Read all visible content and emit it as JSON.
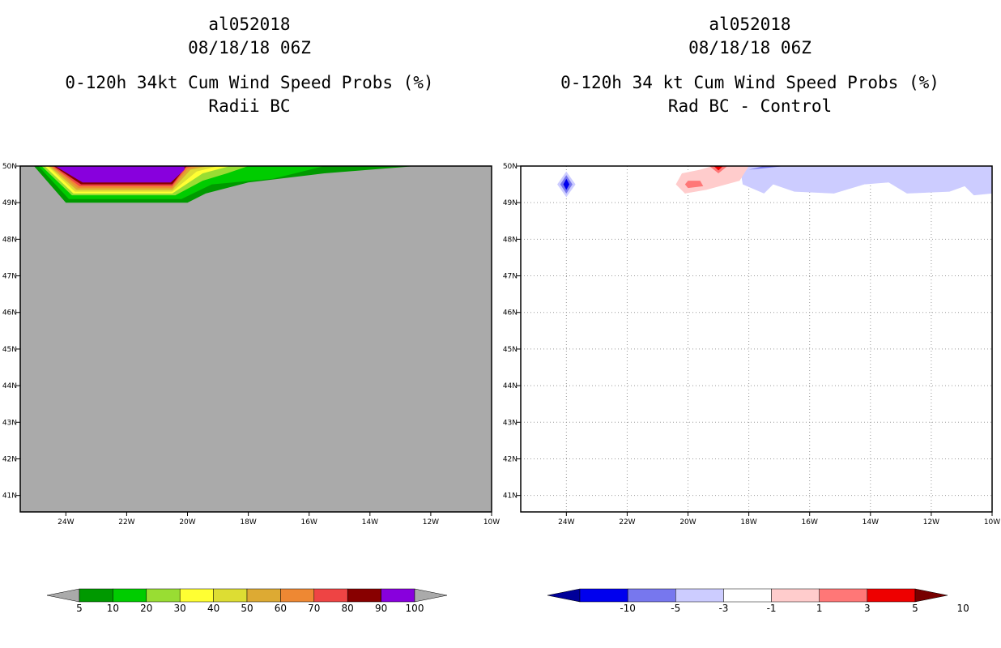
{
  "panels": [
    {
      "storm_id": "al052018",
      "datetime": "08/18/18 06Z",
      "product": "0-120h 34kt Cum Wind Speed Probs (%)",
      "subtitle": "Radii BC"
    },
    {
      "storm_id": "al052018",
      "datetime": "08/18/18 06Z",
      "product": "0-120h 34 kt Cum Wind Speed Probs (%)",
      "subtitle": "Rad BC - Control"
    }
  ],
  "chart_data": [
    {
      "type": "heatmap",
      "title": "0-120h 34kt Cum Wind Speed Probs (%)",
      "subtitle": "Radii BC",
      "xlim": [
        -25.5,
        -10
      ],
      "ylim": [
        40.55,
        50
      ],
      "x_ticks": [
        -24,
        -22,
        -20,
        -18,
        -16,
        -14,
        -12,
        -10
      ],
      "x_tick_labels": [
        "24W",
        "22W",
        "20W",
        "18W",
        "16W",
        "14W",
        "12W",
        "10W"
      ],
      "y_ticks": [
        41,
        42,
        43,
        44,
        45,
        46,
        47,
        48,
        49,
        50
      ],
      "y_tick_labels": [
        "41N",
        "42N",
        "43N",
        "44N",
        "45N",
        "46N",
        "47N",
        "48N",
        "49N",
        "50N"
      ],
      "grid": false,
      "background_color": "#aaaaaa",
      "contour_levels": [
        5,
        10,
        20,
        30,
        40,
        50,
        60,
        70,
        80,
        90,
        100
      ],
      "colorbar_colors": [
        "#009900",
        "#00cc00",
        "#99dd33",
        "#ffff33",
        "#dddd33",
        "#ddaa33",
        "#ee8833",
        "#ee4444",
        "#880000",
        "#8800dd"
      ],
      "colorbar_labels": [
        "5",
        "10",
        "20",
        "30",
        "40",
        "50",
        "60",
        "70",
        "80",
        "90",
        "100"
      ],
      "contours": [
        {
          "level": 5,
          "color": "#009900",
          "points": [
            [
              -25.05,
              50
            ],
            [
              -24.0,
              49.0
            ],
            [
              -20.0,
              49.0
            ],
            [
              -19.4,
              49.25
            ],
            [
              -18.0,
              49.55
            ],
            [
              -15.5,
              49.8
            ],
            [
              -12.5,
              50
            ]
          ]
        },
        {
          "level": 10,
          "color": "#00cc00",
          "points": [
            [
              -24.9,
              50
            ],
            [
              -23.9,
              49.1
            ],
            [
              -20.2,
              49.1
            ],
            [
              -19.2,
              49.5
            ],
            [
              -17.2,
              49.65
            ],
            [
              -15.5,
              50
            ]
          ]
        },
        {
          "level": 20,
          "color": "#99dd33",
          "points": [
            [
              -24.8,
              50
            ],
            [
              -23.8,
              49.2
            ],
            [
              -20.4,
              49.2
            ],
            [
              -19.5,
              49.6
            ],
            [
              -18.7,
              49.8
            ],
            [
              -18.0,
              50
            ]
          ]
        },
        {
          "level": 30,
          "color": "#ffff33",
          "points": [
            [
              -24.7,
              50
            ],
            [
              -23.75,
              49.25
            ],
            [
              -20.5,
              49.25
            ],
            [
              -19.5,
              49.8
            ],
            [
              -18.6,
              50
            ]
          ]
        },
        {
          "level": 40,
          "color": "#dddd33",
          "points": [
            [
              -24.6,
              50
            ],
            [
              -23.7,
              49.3
            ],
            [
              -20.5,
              49.3
            ],
            [
              -19.7,
              49.85
            ],
            [
              -19.0,
              50
            ]
          ]
        },
        {
          "level": 50,
          "color": "#ddaa33",
          "points": [
            [
              -24.55,
              50
            ],
            [
              -23.65,
              49.35
            ],
            [
              -20.5,
              49.35
            ],
            [
              -19.9,
              49.9
            ],
            [
              -19.3,
              50
            ]
          ]
        },
        {
          "level": 60,
          "color": "#ee8833",
          "points": [
            [
              -24.5,
              50
            ],
            [
              -23.6,
              49.4
            ],
            [
              -20.5,
              49.4
            ],
            [
              -20.0,
              49.92
            ],
            [
              -19.6,
              50
            ]
          ]
        },
        {
          "level": 70,
          "color": "#ee4444",
          "points": [
            [
              -24.45,
              50
            ],
            [
              -23.55,
              49.45
            ],
            [
              -20.5,
              49.45
            ],
            [
              -20.05,
              49.95
            ],
            [
              -19.8,
              50
            ]
          ]
        },
        {
          "level": 80,
          "color": "#880000",
          "points": [
            [
              -24.4,
              50
            ],
            [
              -23.5,
              49.5
            ],
            [
              -20.5,
              49.5
            ],
            [
              -20.05,
              49.98
            ],
            [
              -19.95,
              50
            ]
          ]
        },
        {
          "level": 90,
          "color": "#8800dd",
          "points": [
            [
              -24.35,
              50
            ],
            [
              -23.45,
              49.55
            ],
            [
              -20.55,
              49.55
            ],
            [
              -20.1,
              49.9
            ],
            [
              -20.1,
              50
            ]
          ]
        }
      ]
    },
    {
      "type": "heatmap",
      "title": "0-120h 34 kt Cum Wind Speed Probs (%)",
      "subtitle": "Rad BC - Control",
      "xlim": [
        -25.5,
        -10
      ],
      "ylim": [
        40.55,
        50
      ],
      "x_ticks": [
        -24,
        -22,
        -20,
        -18,
        -16,
        -14,
        -12,
        -10
      ],
      "x_tick_labels": [
        "24W",
        "22W",
        "20W",
        "18W",
        "16W",
        "14W",
        "12W",
        "10W"
      ],
      "y_ticks": [
        41,
        42,
        43,
        44,
        45,
        46,
        47,
        48,
        49,
        50
      ],
      "y_tick_labels": [
        "41N",
        "42N",
        "43N",
        "44N",
        "45N",
        "46N",
        "47N",
        "48N",
        "49N",
        "50N"
      ],
      "grid": true,
      "background_color": "#ffffff",
      "contour_levels": [
        -10,
        -5,
        -3,
        -1,
        1,
        3,
        5,
        10
      ],
      "colorbar_colors": [
        "#000099",
        "#0000ee",
        "#7777ee",
        "#ccccff",
        "#ffffff",
        "#ffcccc",
        "#ff7777",
        "#ee0000",
        "#770000"
      ],
      "colorbar_labels": [
        "-10",
        "-5",
        "-3",
        "-1",
        "1",
        "3",
        "5",
        "10"
      ],
      "contours": [
        {
          "level": -1,
          "color": "#ccccff",
          "points": [
            [
              -24.3,
              49.5
            ],
            [
              -24.0,
              49.85
            ],
            [
              -23.7,
              49.5
            ],
            [
              -24.0,
              49.15
            ]
          ]
        },
        {
          "level": -3,
          "color": "#7777ee",
          "points": [
            [
              -24.2,
              49.5
            ],
            [
              -24.0,
              49.75
            ],
            [
              -23.8,
              49.5
            ],
            [
              -24.0,
              49.25
            ]
          ]
        },
        {
          "level": -5,
          "color": "#0000ee",
          "points": [
            [
              -24.1,
              49.5
            ],
            [
              -24.0,
              49.65
            ],
            [
              -23.9,
              49.5
            ],
            [
              -24.0,
              49.35
            ]
          ]
        },
        {
          "level": -1,
          "color": "#ccccff",
          "points": [
            [
              -18.3,
              50
            ],
            [
              -18.2,
              49.5
            ],
            [
              -17.5,
              49.25
            ],
            [
              -17.2,
              49.5
            ],
            [
              -16.5,
              49.3
            ],
            [
              -15.2,
              49.25
            ],
            [
              -14.2,
              49.5
            ],
            [
              -13.4,
              49.55
            ],
            [
              -12.8,
              49.25
            ],
            [
              -11.4,
              49.3
            ],
            [
              -10.9,
              49.45
            ],
            [
              -10.6,
              49.2
            ],
            [
              -10,
              49.25
            ],
            [
              -10,
              50
            ]
          ]
        },
        {
          "level": -3,
          "color": "#7777ee",
          "points": [
            [
              -18.0,
              49.9
            ],
            [
              -16.8,
              50
            ],
            [
              -17.5,
              50
            ]
          ]
        },
        {
          "level": 1,
          "color": "#ffcccc",
          "points": [
            [
              -20.4,
              49.5
            ],
            [
              -20.2,
              49.8
            ],
            [
              -19.6,
              49.9
            ],
            [
              -19.2,
              50
            ],
            [
              -18.0,
              50
            ],
            [
              -18.3,
              49.6
            ],
            [
              -19.4,
              49.35
            ],
            [
              -20.1,
              49.25
            ]
          ]
        },
        {
          "level": 3,
          "color": "#ff7777",
          "points": [
            [
              -20.1,
              49.5
            ],
            [
              -20.0,
              49.6
            ],
            [
              -19.6,
              49.6
            ],
            [
              -19.5,
              49.45
            ],
            [
              -20.0,
              49.4
            ]
          ]
        },
        {
          "level": 3,
          "color": "#ff7777",
          "points": [
            [
              -19.3,
              50
            ],
            [
              -19.0,
              49.8
            ],
            [
              -18.7,
              50
            ]
          ]
        },
        {
          "level": 5,
          "color": "#ee0000",
          "points": [
            [
              -19.15,
              50
            ],
            [
              -19.0,
              49.88
            ],
            [
              -18.85,
              50
            ]
          ]
        }
      ]
    }
  ]
}
